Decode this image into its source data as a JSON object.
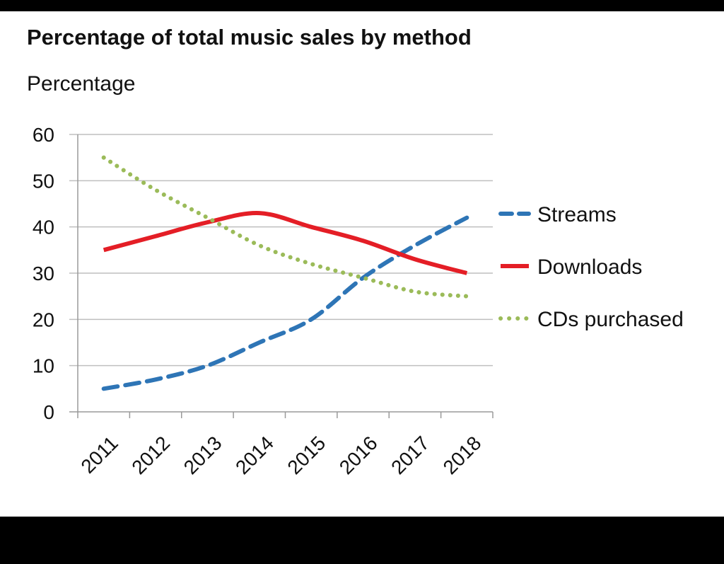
{
  "chart_data": {
    "type": "line",
    "title": "Percentage of total music sales by method",
    "ylabel": "Percentage",
    "xlabel": "",
    "ylim": [
      0,
      60
    ],
    "yticks": [
      0,
      10,
      20,
      30,
      40,
      50,
      60
    ],
    "categories": [
      "2011",
      "2012",
      "2013",
      "2014",
      "2015",
      "2016",
      "2017",
      "2018"
    ],
    "grid": true,
    "legend_position": "right",
    "series": [
      {
        "name": "Streams",
        "key": "streams",
        "values": [
          5,
          7,
          10,
          15,
          20,
          29,
          36,
          42
        ],
        "color": "#2E75B6",
        "style": "dashed"
      },
      {
        "name": "Downloads",
        "key": "downloads",
        "values": [
          35,
          38,
          41,
          43,
          40,
          37,
          33,
          30
        ],
        "color": "#E41E26",
        "style": "solid"
      },
      {
        "name": "CDs purchased",
        "key": "cds",
        "values": [
          55,
          48,
          42,
          36,
          32,
          29,
          26,
          25
        ],
        "color": "#9BBB59",
        "style": "dotted"
      }
    ]
  }
}
